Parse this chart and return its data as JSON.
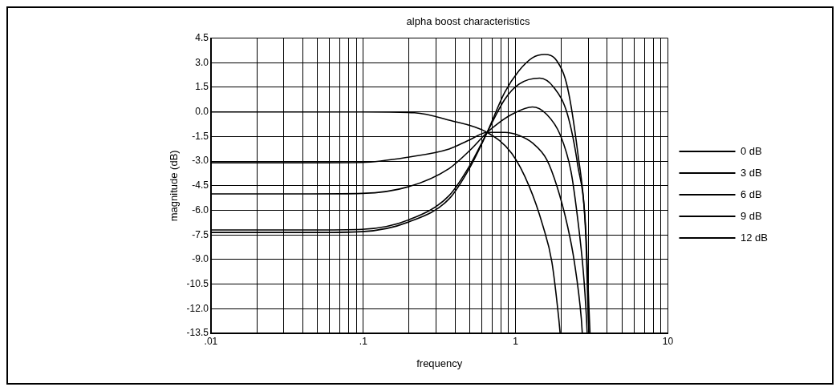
{
  "chart_data": {
    "type": "line",
    "title": "alpha boost characteristics",
    "xlabel": "frequency",
    "ylabel": "magnitude (dB)",
    "log": "x",
    "grid": true,
    "legend": "right",
    "marker": "none",
    "line_style": "solid",
    "xlim": [
      0.01,
      10
    ],
    "ylim": [
      -13.5,
      4.5
    ],
    "xticks": [
      {
        "value": 0.01,
        "label": ".01"
      },
      {
        "value": 0.02,
        "label": null
      },
      {
        "value": 0.03,
        "label": null
      },
      {
        "value": 0.04,
        "label": null
      },
      {
        "value": 0.05,
        "label": null
      },
      {
        "value": 0.06,
        "label": null
      },
      {
        "value": 0.07,
        "label": null
      },
      {
        "value": 0.08,
        "label": null
      },
      {
        "value": 0.09,
        "label": null
      },
      {
        "value": 0.1,
        "label": ".1"
      },
      {
        "value": 0.2,
        "label": null
      },
      {
        "value": 0.3,
        "label": null
      },
      {
        "value": 0.4,
        "label": null
      },
      {
        "value": 0.5,
        "label": null
      },
      {
        "value": 0.6,
        "label": null
      },
      {
        "value": 0.7,
        "label": null
      },
      {
        "value": 0.8,
        "label": null
      },
      {
        "value": 0.9,
        "label": null
      },
      1,
      {
        "value": 2,
        "label": null
      },
      {
        "value": 3,
        "label": null
      },
      {
        "value": 4,
        "label": null
      },
      {
        "value": 5,
        "label": null
      },
      {
        "value": 6,
        "label": null
      },
      {
        "value": 7,
        "label": null
      },
      {
        "value": 8,
        "label": null
      },
      {
        "value": 9,
        "label": null
      },
      10
    ],
    "yticks": [
      4.5,
      {
        "value": 3,
        "label": "3.0"
      },
      1.5,
      {
        "value": 0,
        "label": "0.0"
      },
      -1.5,
      {
        "value": -3,
        "label": "-3.0"
      },
      -4.5,
      {
        "value": -6,
        "label": "-6.0"
      },
      -7.5,
      {
        "value": -9,
        "label": "-9.0"
      },
      -10.5,
      {
        "value": -12,
        "label": "-12.0"
      },
      -13.5
    ],
    "series": [
      {
        "name": "0 dB",
        "color": "#000000",
        "x": [
          0.01,
          0.05,
          0.1,
          0.217,
          0.366,
          0.65,
          0.944,
          1.23,
          1.51,
          1.73,
          1.92,
          1.96
        ],
        "values": [
          0,
          0,
          0,
          -0.05,
          -0.5,
          -1.25,
          -2.53,
          -4.55,
          -6.94,
          -9.14,
          -12.6,
          -13.5
        ]
      },
      {
        "name": "3 dB",
        "color": "#000000",
        "x": [
          0.01,
          0.045,
          0.098,
          0.2,
          0.366,
          0.5,
          0.65,
          0.849,
          1.05,
          1.29,
          1.6,
          1.87,
          2.19,
          2.43,
          2.7,
          2.74
        ],
        "values": [
          -3.1,
          -3.1,
          -3.08,
          -2.75,
          -2.26,
          -1.7,
          -1.25,
          -1.25,
          -1.43,
          -1.89,
          -2.9,
          -4.55,
          -6.94,
          -9.14,
          -12.6,
          -13.5
        ]
      },
      {
        "name": "6 dB",
        "color": "#000000",
        "x": [
          0.01,
          0.045,
          0.098,
          0.2,
          0.366,
          0.5,
          0.65,
          0.766,
          0.944,
          1.29,
          1.6,
          1.97,
          2.31,
          2.56,
          2.78,
          2.92,
          2.95
        ],
        "values": [
          -5,
          -5,
          -4.97,
          -4.55,
          -3.45,
          -2.35,
          -1.25,
          -0.7,
          -0.15,
          0.3,
          -0.15,
          -1.43,
          -3.63,
          -6.57,
          -9.69,
          -12.6,
          -13.5
        ]
      },
      {
        "name": "9 dB",
        "color": "#000000",
        "x": [
          0.01,
          0.045,
          0.098,
          0.2,
          0.366,
          0.5,
          0.65,
          0.849,
          1.05,
          1.44,
          1.78,
          2.19,
          2.56,
          2.88,
          3.0,
          3.03
        ],
        "values": [
          -7.2,
          -7.2,
          -7.16,
          -6.57,
          -5.1,
          -3.27,
          -1.25,
          0.77,
          1.69,
          2.06,
          1.5,
          -0.15,
          -3.27,
          -7.3,
          -12.6,
          -13.5
        ]
      },
      {
        "name": "12 dB",
        "color": "#000000",
        "x": [
          0.01,
          0.045,
          0.098,
          0.2,
          0.366,
          0.5,
          0.65,
          0.849,
          1.05,
          1.29,
          1.55,
          1.87,
          2.19,
          2.56,
          2.88,
          3.05,
          3.08
        ],
        "values": [
          -7.35,
          -7.35,
          -7.3,
          -6.7,
          -5.3,
          -3.4,
          -1.25,
          1.2,
          2.5,
          3.3,
          3.5,
          3.1,
          1.5,
          -2.5,
          -7,
          -12.6,
          -13.5
        ]
      }
    ]
  }
}
